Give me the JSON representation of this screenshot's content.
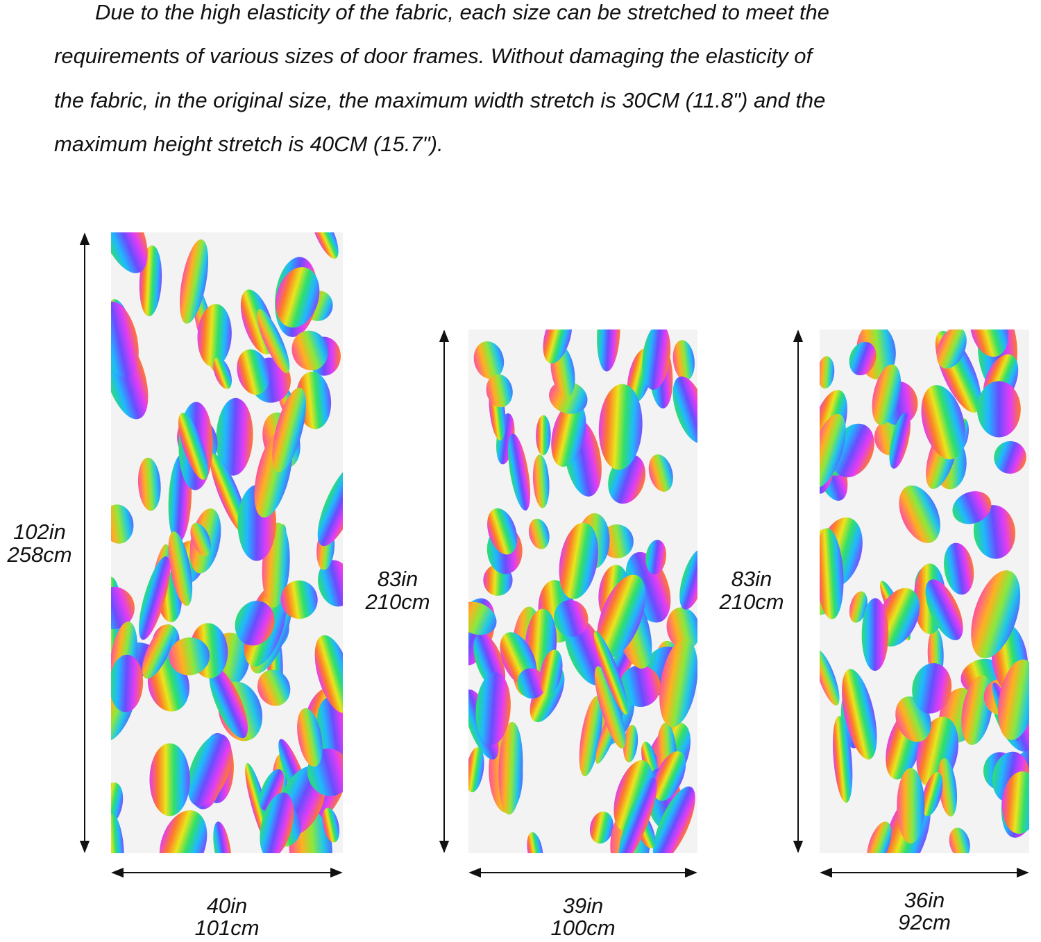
{
  "text": {
    "lines": [
      "Due to the high elasticity of the fabric, each size can be stretched to meet the",
      "requirements of various sizes of door frames. Without damaging the elasticity of",
      "the fabric, in the original size, the maximum width stretch is 30CM (11.8\") and the",
      "maximum height stretch is 40CM (15.7\")."
    ]
  },
  "panels": [
    {
      "height_in": "102in",
      "height_cm": "258cm",
      "width_in": "40in",
      "width_cm": "101cm"
    },
    {
      "height_in": "83in",
      "height_cm": "210cm",
      "width_in": "39in",
      "width_cm": "100cm"
    },
    {
      "height_in": "83in",
      "height_cm": "210cm",
      "width_in": "36in",
      "width_cm": "92cm"
    }
  ]
}
